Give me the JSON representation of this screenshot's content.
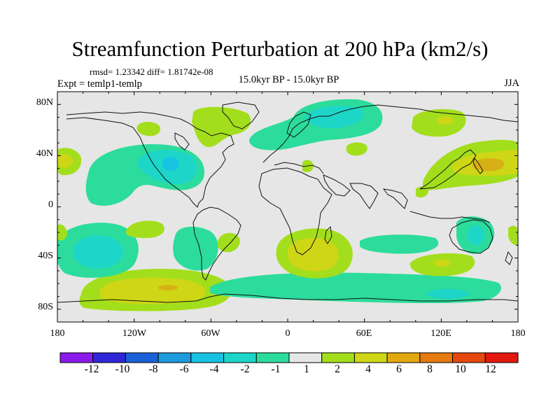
{
  "title": "Streamfunction Perturbation at 200 hPa (km2/s)",
  "stats": "rmsd= 1.23342 diff= 1.81742e-08",
  "expt": "Expt = temlp1-temlp",
  "center_label": "15.0kyr BP - 15.0kyr BP",
  "season": "JJA",
  "map": {
    "lat_ticks": [
      "80N",
      "40N",
      "0",
      "40S",
      "80S"
    ],
    "lon_ticks": [
      "180",
      "120W",
      "60W",
      "0",
      "60E",
      "120E",
      "180"
    ]
  },
  "colorbar": {
    "labels": [
      "-12",
      "-10",
      "-8",
      "-6",
      "-4",
      "-2",
      "-1",
      "1",
      "2",
      "4",
      "6",
      "8",
      "10",
      "12"
    ],
    "colors": [
      "#8a1bea",
      "#2f27d8",
      "#1b62d8",
      "#1e9bdc",
      "#18c3e2",
      "#1dd6c8",
      "#2cdc9c",
      "#e6e6e6",
      "#a3de1c",
      "#cfd616",
      "#e2a80f",
      "#e57a10",
      "#e6480f",
      "#e3180f"
    ]
  },
  "colors": {
    "neutral": "#e6e6e6",
    "pos1": "#a3de1c",
    "pos2": "#cfd616",
    "pos3": "#d6b015",
    "neg1": "#2cdc9c",
    "neg2": "#1dd6c8",
    "neg3": "#18c3e2"
  }
}
